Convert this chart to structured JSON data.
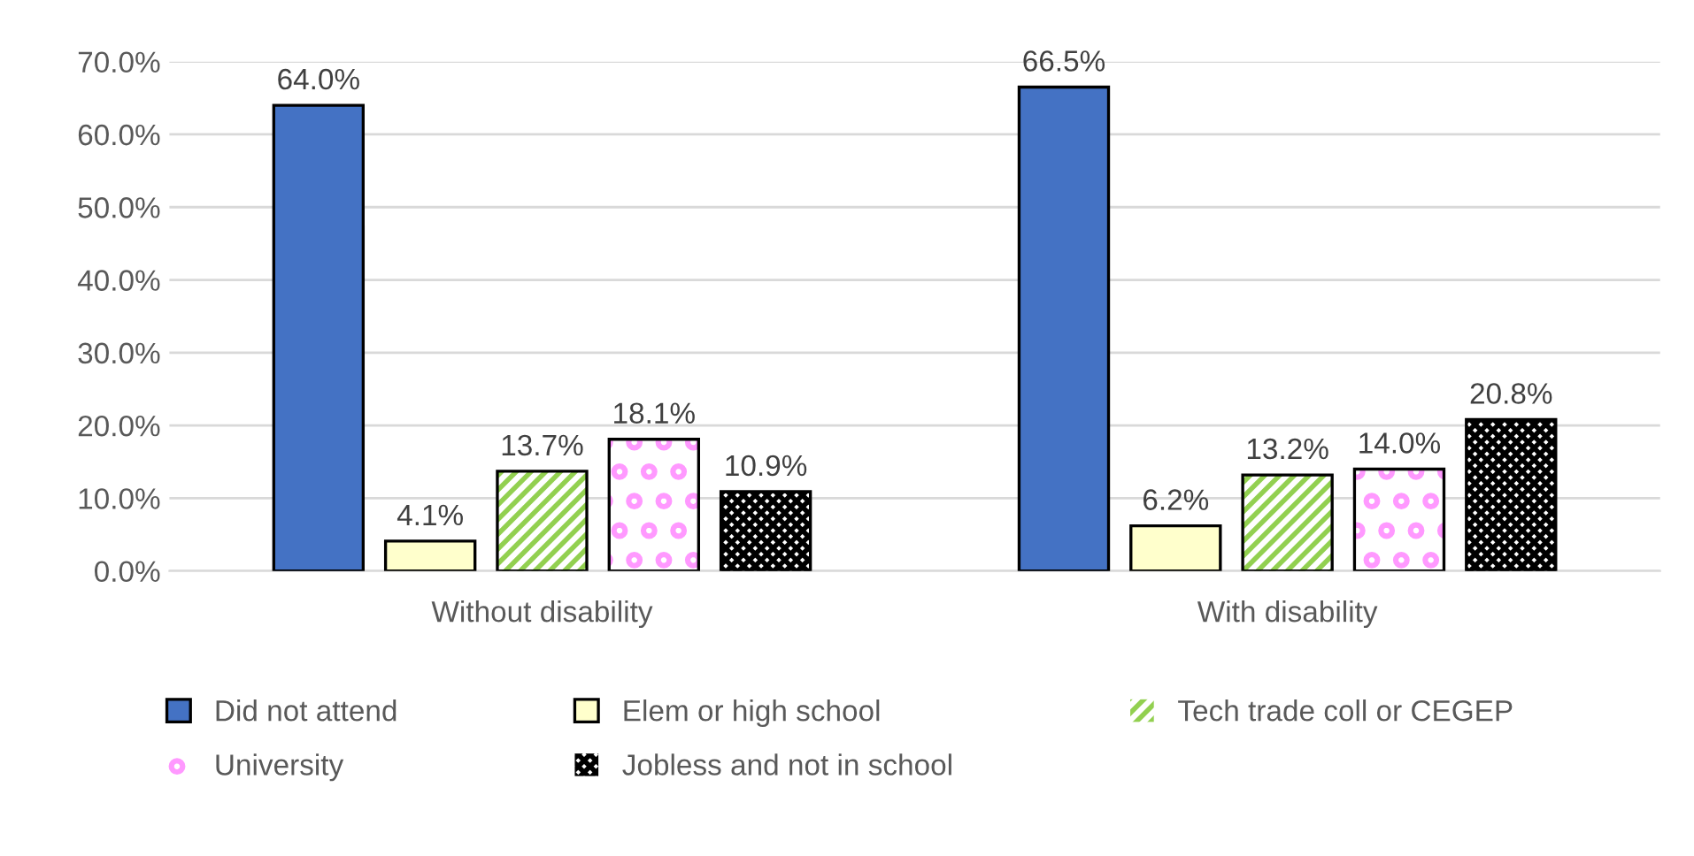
{
  "chart_data": {
    "type": "bar",
    "categories": [
      "Without disability",
      "With disability"
    ],
    "series": [
      {
        "name": "Did not attend",
        "color": "#4472c4",
        "values": [
          64.0,
          66.5
        ]
      },
      {
        "name": "Elem or high school",
        "color": "#ffffcc",
        "values": [
          4.1,
          6.2
        ]
      },
      {
        "name": "Tech trade coll or CEGEP",
        "color": "#92d050",
        "values": [
          13.7,
          13.2
        ]
      },
      {
        "name": "University",
        "color": "#ff99ff",
        "values": [
          18.1,
          14.0
        ]
      },
      {
        "name": "Jobless and not in school",
        "color": "#000000",
        "values": [
          10.9,
          20.8
        ]
      }
    ],
    "ylim": [
      0,
      70
    ],
    "yticks": [
      {
        "value": 0,
        "label": "0.0%"
      },
      {
        "value": 10,
        "label": "10.0%"
      },
      {
        "value": 20,
        "label": "20.0%"
      },
      {
        "value": 30,
        "label": "30.0%"
      },
      {
        "value": 40,
        "label": "40.0%"
      },
      {
        "value": 50,
        "label": "50.0%"
      },
      {
        "value": 60,
        "label": "60.0%"
      },
      {
        "value": 70,
        "label": "70.0%"
      }
    ],
    "value_labels": [
      [
        "64.0%",
        "66.5%"
      ],
      [
        "4.1%",
        "6.2%"
      ],
      [
        "13.7%",
        "13.2%"
      ],
      [
        "18.1%",
        "14.0%"
      ],
      [
        "10.9%",
        "20.8%"
      ]
    ],
    "grid": "y",
    "legend": "bottom"
  }
}
